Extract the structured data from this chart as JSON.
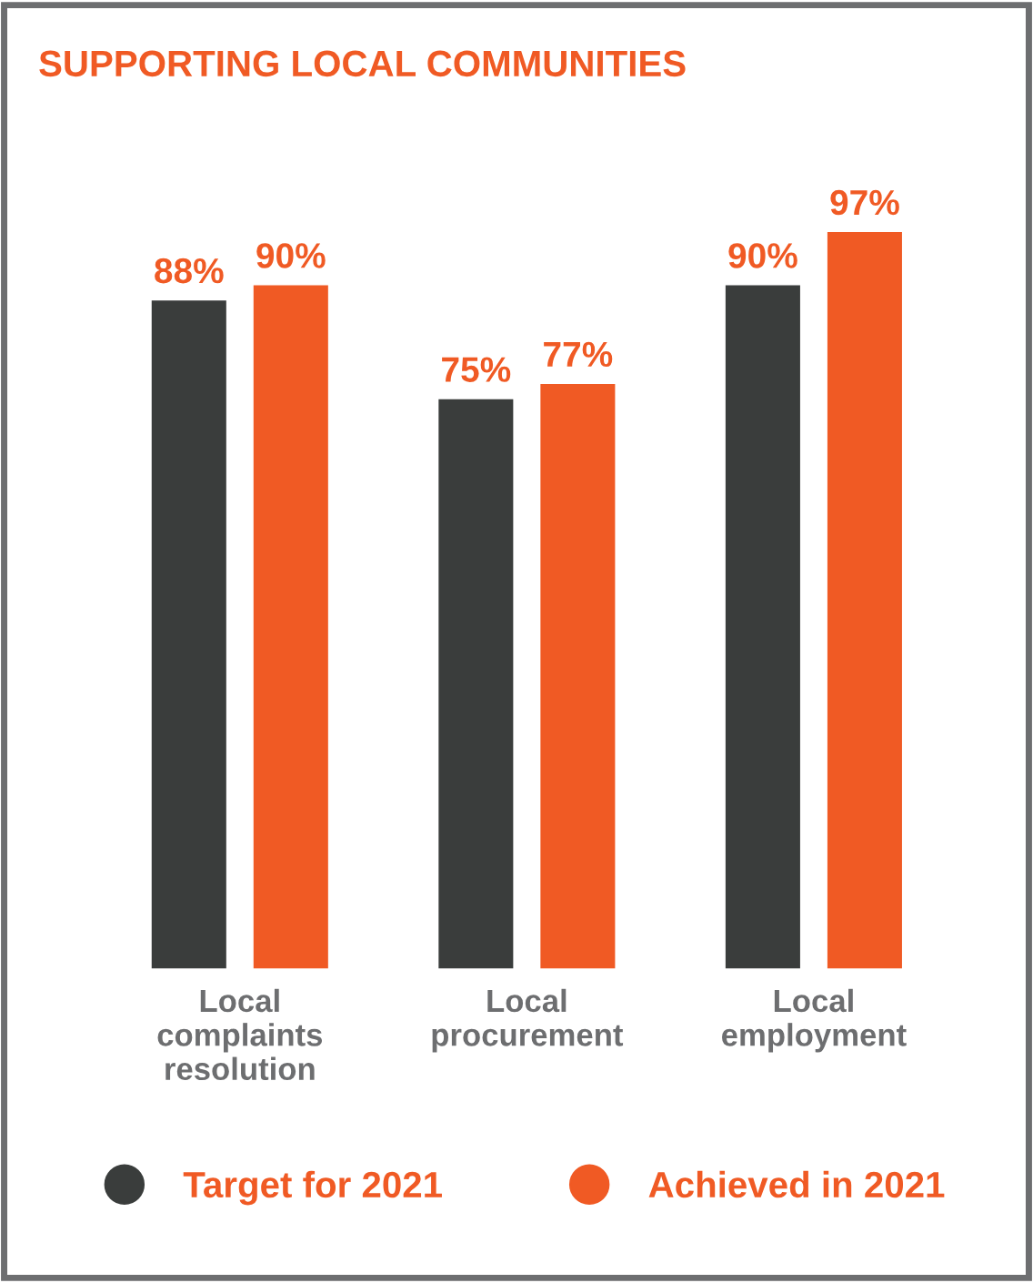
{
  "chart_data": {
    "type": "bar",
    "title": "SUPPORTING LOCAL COMMUNITIES",
    "categories": [
      "Local\ncomplaints\nresolution",
      "Local\nprocurement",
      "Local\nemployment"
    ],
    "series": [
      {
        "name": "Target for 2021",
        "color": "#3a3d3c",
        "values": [
          88,
          75,
          90
        ],
        "value_labels": [
          "88%",
          "75%",
          "90%"
        ]
      },
      {
        "name": "Achieved in 2021",
        "color": "#f05a24",
        "values": [
          90,
          77,
          97
        ],
        "value_labels": [
          "90%",
          "77%",
          "97%"
        ]
      }
    ],
    "legend": "bottom",
    "grid": false
  }
}
